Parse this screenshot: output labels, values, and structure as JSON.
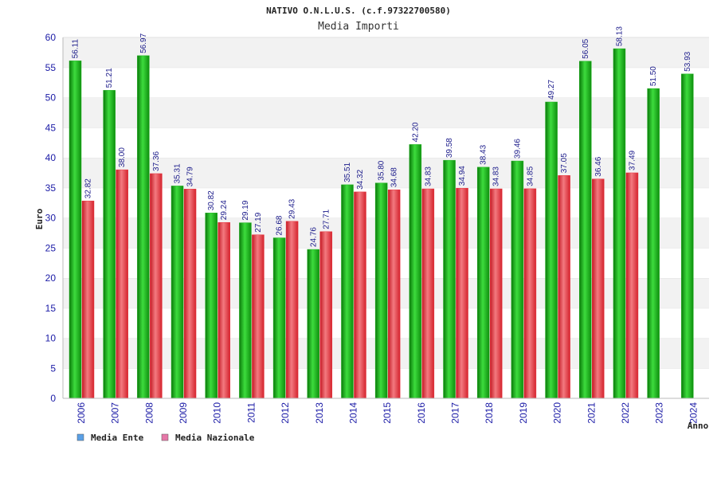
{
  "chart_data": {
    "type": "bar",
    "title": "NATIVO O.N.L.U.S. (c.f.97322700580)",
    "subtitle": "Media Importi",
    "xlabel": "Anno",
    "ylabel": "Euro",
    "ylim": [
      0,
      60
    ],
    "yticks": [
      "0",
      "5",
      "10",
      "15",
      "20",
      "25",
      "30",
      "35",
      "40",
      "45",
      "50",
      "55",
      "60"
    ],
    "categories": [
      "2006",
      "2007",
      "2008",
      "2009",
      "2010",
      "2011",
      "2012",
      "2013",
      "2014",
      "2015",
      "2016",
      "2017",
      "2018",
      "2019",
      "2020",
      "2021",
      "2022",
      "2023",
      "2024"
    ],
    "series": [
      {
        "name": "Media Ente",
        "color": "#1fb31f",
        "legend_color": "#5aa0e6",
        "values": [
          56.11,
          51.21,
          56.97,
          35.31,
          30.82,
          29.19,
          26.68,
          24.76,
          35.51,
          35.8,
          42.2,
          39.58,
          38.43,
          39.46,
          49.27,
          56.05,
          58.13,
          51.5,
          53.93
        ],
        "labels": [
          "56.11",
          "51.21",
          "56.97",
          "35.31",
          "30.82",
          "29.19",
          "26.68",
          "24.76",
          "35.51",
          "35.80",
          "42.20",
          "39.58",
          "38.43",
          "39.46",
          "49.27",
          "56.05",
          "58.13",
          "51.50",
          "53.93"
        ]
      },
      {
        "name": "Media Nazionale",
        "color": "#e8323c",
        "legend_color": "#e678a8",
        "values": [
          32.82,
          38.0,
          37.36,
          34.79,
          29.24,
          27.19,
          29.43,
          27.71,
          34.32,
          34.68,
          34.83,
          34.94,
          34.83,
          34.85,
          37.05,
          36.46,
          37.49,
          null,
          null
        ],
        "labels": [
          "32.82",
          "38.00",
          "37.36",
          "34.79",
          "29.24",
          "27.19",
          "29.43",
          "27.71",
          "34.32",
          "34.68",
          "34.83",
          "34.94",
          "34.83",
          "34.85",
          "37.05",
          "36.46",
          "37.49",
          null,
          null
        ]
      }
    ],
    "grid": true,
    "legend_position": "bottom-left"
  }
}
